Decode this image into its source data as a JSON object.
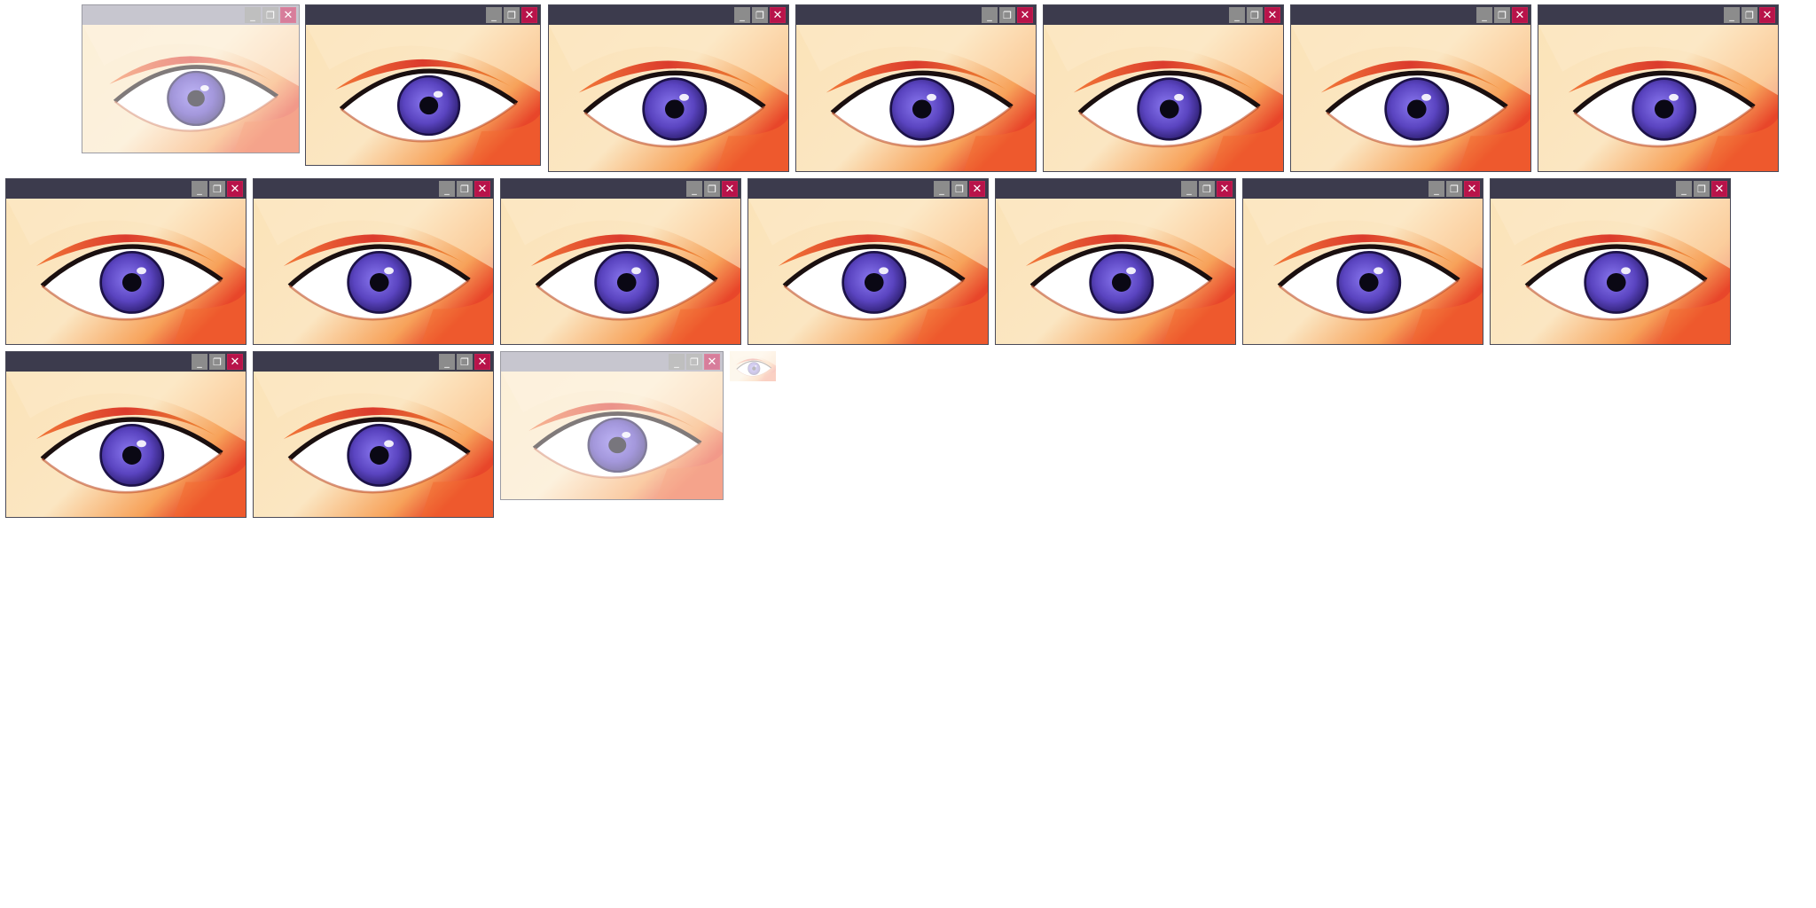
{
  "desktop": {
    "windows": [
      {
        "id": 1,
        "state": "fading"
      },
      {
        "id": 2
      },
      {
        "id": 3
      },
      {
        "id": 4
      },
      {
        "id": 5
      },
      {
        "id": 6
      },
      {
        "id": 7
      },
      {
        "id": 8
      },
      {
        "id": 9
      },
      {
        "id": 10
      },
      {
        "id": 11
      },
      {
        "id": 12
      },
      {
        "id": 13
      },
      {
        "id": 14
      },
      {
        "id": 15
      },
      {
        "id": 16
      },
      {
        "id": 17,
        "state": "fading"
      }
    ],
    "window_controls": {
      "minimize_icon": "minimize-icon",
      "restore_icon": "restore-icon",
      "close_icon": "close-icon"
    },
    "colors": {
      "titlebar": "#3c3b4d",
      "close_button": "#b8134a",
      "iris": "#5a44c0"
    }
  }
}
